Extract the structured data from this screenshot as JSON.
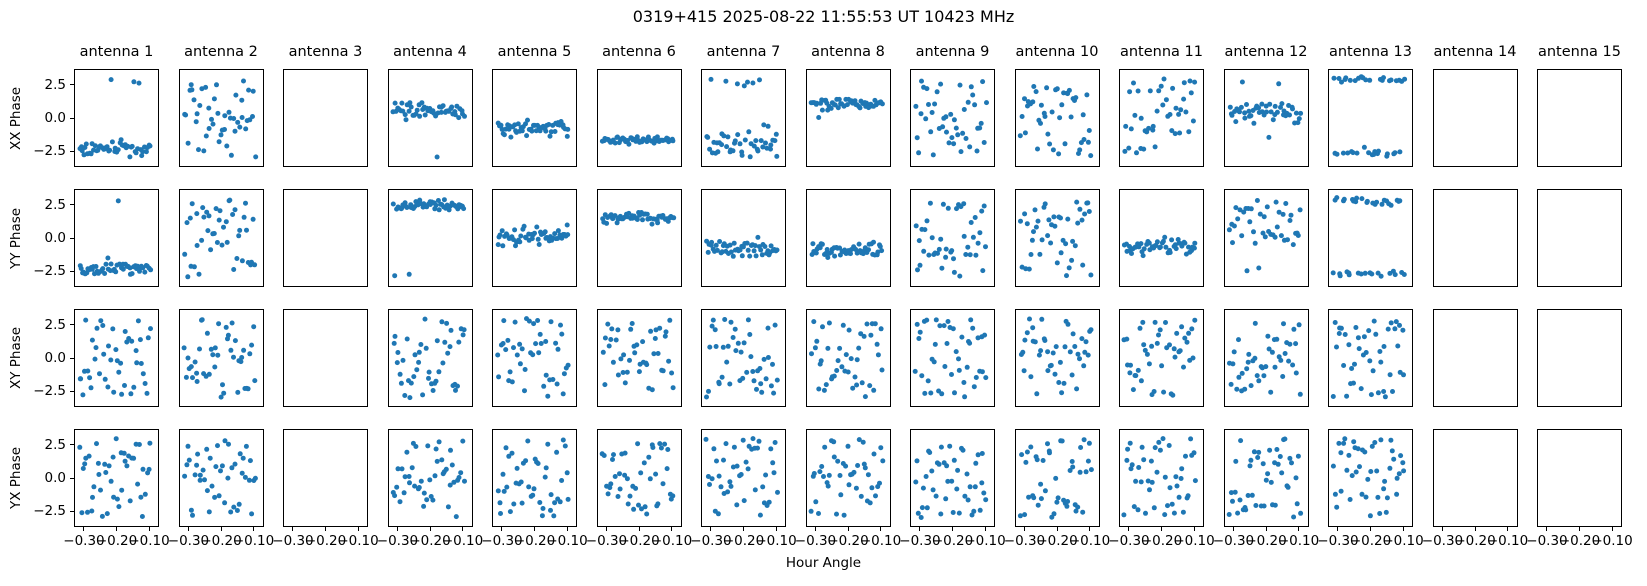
{
  "chart_data": {
    "type": "scatter",
    "title": "0319+415  2025-08-22 11:55:53 UT  10423 MHz",
    "xlabel": "Hour Angle",
    "columns": [
      "antenna 1",
      "antenna 2",
      "antenna 3",
      "antenna 4",
      "antenna 5",
      "antenna 6",
      "antenna 7",
      "antenna 8",
      "antenna 9",
      "antenna 10",
      "antenna 11",
      "antenna 12",
      "antenna 13",
      "antenna 14",
      "antenna 15"
    ],
    "x_ticks": [
      "−0.30",
      "−0.20",
      "−0.10"
    ],
    "x_tick_values": [
      -0.3,
      -0.2,
      -0.1
    ],
    "y_ticks": [
      "2.5",
      "0.0",
      "−2.5"
    ],
    "y_tick_values": [
      2.5,
      0.0,
      -2.5
    ],
    "xlim": [
      -0.3306,
      -0.0694
    ],
    "ylim": [
      -3.7,
      3.7
    ],
    "x_points_range": [
      -0.316,
      -0.094
    ],
    "marker_color": "#1f77b4",
    "background": "#ffffff",
    "grid": "off",
    "legend": "none",
    "empty_antennas": [
      3,
      14,
      15
    ],
    "rows": [
      {
        "label": "XX Phase",
        "panels": [
          {
            "antenna": 1,
            "pattern": "cluster",
            "n": 52,
            "center": -2.35,
            "spread": 0.26,
            "outliers": [
              {
                "n": 3,
                "center": 2.85,
                "spread": 0.08
              }
            ]
          },
          {
            "antenna": 2,
            "pattern": "uniform",
            "n": 46,
            "lo": -3.0,
            "hi": 2.95
          },
          {
            "antenna": 3,
            "pattern": "empty",
            "n": 0
          },
          {
            "antenna": 4,
            "pattern": "cluster",
            "n": 52,
            "center": 0.6,
            "spread": 0.33,
            "outliers": [
              {
                "n": 1,
                "center": -3.0,
                "spread": 0.05
              }
            ]
          },
          {
            "antenna": 5,
            "pattern": "cluster",
            "n": 52,
            "center": -0.75,
            "spread": 0.27
          },
          {
            "antenna": 6,
            "pattern": "cluster",
            "n": 52,
            "center": -1.7,
            "spread": 0.15
          },
          {
            "antenna": 7,
            "pattern": "cluster",
            "n": 50,
            "center": -2.0,
            "spread": 0.55,
            "outliers": [
              {
                "n": 8,
                "center": 2.65,
                "spread": 0.22
              }
            ]
          },
          {
            "antenna": 8,
            "pattern": "cluster",
            "n": 52,
            "center": 1.1,
            "spread": 0.2,
            "outliers": [
              {
                "n": 1,
                "center": 0.05,
                "spread": 0.05
              }
            ]
          },
          {
            "antenna": 9,
            "pattern": "uniform",
            "n": 44,
            "lo": -2.95,
            "hi": 3.05
          },
          {
            "antenna": 10,
            "pattern": "uniform",
            "n": 44,
            "lo": -2.9,
            "hi": 3.0
          },
          {
            "antenna": 11,
            "pattern": "uniform",
            "n": 42,
            "lo": -1.25,
            "hi": 3.05,
            "outliers": [
              {
                "n": 7,
                "center": -2.3,
                "spread": 0.45
              }
            ]
          },
          {
            "antenna": 12,
            "pattern": "cluster",
            "n": 50,
            "center": 0.45,
            "spread": 0.4,
            "outliers": [
              {
                "n": 2,
                "center": 2.55,
                "spread": 0.12
              },
              {
                "n": 1,
                "center": -1.6,
                "spread": 0.1
              }
            ]
          },
          {
            "antenna": 13,
            "pattern": "two_bands",
            "n": 40,
            "top_frac": 0.52,
            "top_center": 2.95,
            "top_spread": 0.12,
            "bottom_center": -2.6,
            "bottom_spread": 0.17
          },
          {
            "antenna": 14,
            "pattern": "empty",
            "n": 0
          },
          {
            "antenna": 15,
            "pattern": "empty",
            "n": 0
          }
        ]
      },
      {
        "label": "YY Phase",
        "panels": [
          {
            "antenna": 1,
            "pattern": "cluster",
            "n": 52,
            "center": -2.35,
            "spread": 0.27,
            "outliers": [
              {
                "n": 1,
                "center": 2.85,
                "spread": 0.05
              }
            ]
          },
          {
            "antenna": 2,
            "pattern": "uniform",
            "n": 44,
            "lo": -3.05,
            "hi": 2.95
          },
          {
            "antenna": 3,
            "pattern": "empty",
            "n": 0
          },
          {
            "antenna": 4,
            "pattern": "cluster",
            "n": 52,
            "center": 2.5,
            "spread": 0.2,
            "outliers": [
              {
                "n": 2,
                "center": -2.85,
                "spread": 0.25
              }
            ]
          },
          {
            "antenna": 5,
            "pattern": "cluster",
            "n": 52,
            "center": 0.15,
            "spread": 0.38
          },
          {
            "antenna": 6,
            "pattern": "cluster",
            "n": 52,
            "center": 1.55,
            "spread": 0.24
          },
          {
            "antenna": 7,
            "pattern": "cluster",
            "n": 52,
            "center": -0.85,
            "spread": 0.33
          },
          {
            "antenna": 8,
            "pattern": "cluster",
            "n": 52,
            "center": -0.9,
            "spread": 0.28
          },
          {
            "antenna": 9,
            "pattern": "uniform",
            "n": 44,
            "lo": -2.95,
            "hi": 3.0
          },
          {
            "antenna": 10,
            "pattern": "uniform",
            "n": 44,
            "lo": -3.0,
            "hi": 3.0
          },
          {
            "antenna": 11,
            "pattern": "cluster",
            "n": 50,
            "center": -0.7,
            "spread": 0.35
          },
          {
            "antenna": 12,
            "pattern": "uniform",
            "n": 42,
            "lo": -0.55,
            "hi": 2.9,
            "outliers": [
              {
                "n": 2,
                "center": -2.3,
                "spread": 0.45
              }
            ]
          },
          {
            "antenna": 13,
            "pattern": "two_bands",
            "n": 40,
            "top_frac": 0.58,
            "top_center": 2.8,
            "top_spread": 0.15,
            "bottom_center": -2.7,
            "bottom_spread": 0.14
          },
          {
            "antenna": 14,
            "pattern": "empty",
            "n": 0
          },
          {
            "antenna": 15,
            "pattern": "empty",
            "n": 0
          }
        ]
      },
      {
        "label": "XY Phase",
        "panels": [
          {
            "antenna": 1,
            "pattern": "uniform",
            "n": 44,
            "lo": -3.05,
            "hi": 3.05
          },
          {
            "antenna": 2,
            "pattern": "uniform",
            "n": 44,
            "lo": -3.05,
            "hi": 3.05
          },
          {
            "antenna": 3,
            "pattern": "empty",
            "n": 0
          },
          {
            "antenna": 4,
            "pattern": "uniform",
            "n": 44,
            "lo": -3.05,
            "hi": 3.05
          },
          {
            "antenna": 5,
            "pattern": "uniform",
            "n": 44,
            "lo": -3.05,
            "hi": 3.05
          },
          {
            "antenna": 6,
            "pattern": "uniform",
            "n": 44,
            "lo": -3.05,
            "hi": 3.05
          },
          {
            "antenna": 7,
            "pattern": "uniform",
            "n": 44,
            "lo": -3.05,
            "hi": 3.05
          },
          {
            "antenna": 8,
            "pattern": "uniform",
            "n": 44,
            "lo": -3.05,
            "hi": 3.05
          },
          {
            "antenna": 9,
            "pattern": "uniform",
            "n": 44,
            "lo": -3.05,
            "hi": 3.05
          },
          {
            "antenna": 10,
            "pattern": "uniform",
            "n": 44,
            "lo": -3.05,
            "hi": 3.05
          },
          {
            "antenna": 11,
            "pattern": "uniform",
            "n": 44,
            "lo": -3.05,
            "hi": 3.05
          },
          {
            "antenna": 12,
            "pattern": "uniform",
            "n": 44,
            "lo": -3.05,
            "hi": 3.05
          },
          {
            "antenna": 13,
            "pattern": "uniform",
            "n": 44,
            "lo": -3.05,
            "hi": 3.05
          },
          {
            "antenna": 14,
            "pattern": "empty",
            "n": 0
          },
          {
            "antenna": 15,
            "pattern": "empty",
            "n": 0
          }
        ]
      },
      {
        "label": "YX Phase",
        "panels": [
          {
            "antenna": 1,
            "pattern": "uniform",
            "n": 44,
            "lo": -3.05,
            "hi": 3.05
          },
          {
            "antenna": 2,
            "pattern": "uniform",
            "n": 44,
            "lo": -3.05,
            "hi": 3.05
          },
          {
            "antenna": 3,
            "pattern": "empty",
            "n": 0
          },
          {
            "antenna": 4,
            "pattern": "uniform",
            "n": 44,
            "lo": -3.05,
            "hi": 3.05
          },
          {
            "antenna": 5,
            "pattern": "uniform",
            "n": 44,
            "lo": -3.05,
            "hi": 3.05
          },
          {
            "antenna": 6,
            "pattern": "uniform",
            "n": 44,
            "lo": -3.05,
            "hi": 3.05
          },
          {
            "antenna": 7,
            "pattern": "uniform",
            "n": 44,
            "lo": -3.05,
            "hi": 3.05
          },
          {
            "antenna": 8,
            "pattern": "uniform",
            "n": 44,
            "lo": -3.05,
            "hi": 3.05
          },
          {
            "antenna": 9,
            "pattern": "uniform",
            "n": 44,
            "lo": -3.05,
            "hi": 3.05
          },
          {
            "antenna": 10,
            "pattern": "uniform",
            "n": 44,
            "lo": -3.05,
            "hi": 3.05
          },
          {
            "antenna": 11,
            "pattern": "uniform",
            "n": 44,
            "lo": -3.05,
            "hi": 3.05
          },
          {
            "antenna": 12,
            "pattern": "uniform",
            "n": 44,
            "lo": -3.05,
            "hi": 3.05
          },
          {
            "antenna": 13,
            "pattern": "uniform",
            "n": 44,
            "lo": -3.05,
            "hi": 3.05
          },
          {
            "antenna": 14,
            "pattern": "empty",
            "n": 0
          },
          {
            "antenna": 15,
            "pattern": "empty",
            "n": 0
          }
        ]
      }
    ]
  }
}
